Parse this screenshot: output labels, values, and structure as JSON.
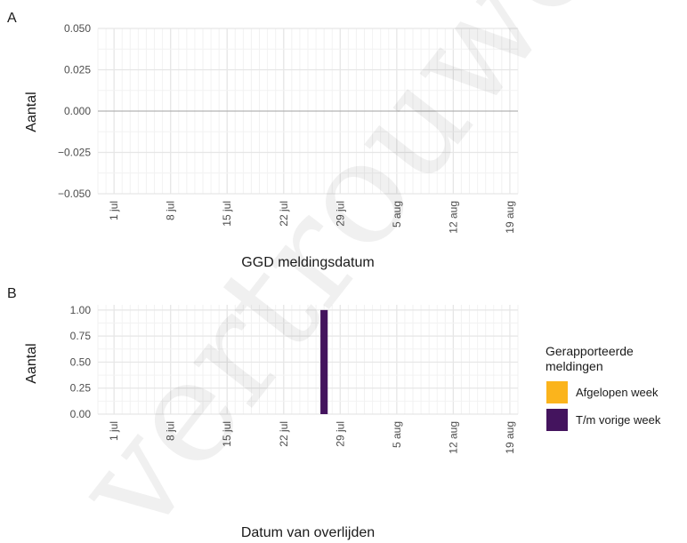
{
  "chart_data": [
    {
      "panel": "A",
      "type": "bar",
      "x_type": "date",
      "xlim": [
        "2020-06-29",
        "2020-08-20"
      ],
      "x_ticks": [
        "2020-07-01",
        "2020-07-08",
        "2020-07-15",
        "2020-07-22",
        "2020-07-29",
        "2020-08-05",
        "2020-08-12",
        "2020-08-19"
      ],
      "x_tick_labels": [
        "1 jul",
        "8 jul",
        "15 jul",
        "22 jul",
        "29 jul",
        "5 aug",
        "12 aug",
        "19 aug"
      ],
      "ylim": [
        -0.05,
        0.05
      ],
      "y_ticks": [
        -0.05,
        -0.025,
        0,
        0.025,
        0.05
      ],
      "y_tick_labels": [
        "−0.050",
        "−0.025",
        "0.000",
        "0.025",
        "0.050"
      ],
      "xlabel": "GGD meldingsdatum",
      "ylabel": "Aantal",
      "grid": true,
      "series": []
    },
    {
      "panel": "B",
      "type": "bar",
      "x_type": "date",
      "xlim": [
        "2020-06-29",
        "2020-08-20"
      ],
      "x_ticks": [
        "2020-07-01",
        "2020-07-08",
        "2020-07-15",
        "2020-07-22",
        "2020-07-29",
        "2020-08-05",
        "2020-08-12",
        "2020-08-19"
      ],
      "x_tick_labels": [
        "1 jul",
        "8 jul",
        "15 jul",
        "22 jul",
        "29 jul",
        "5 aug",
        "12 aug",
        "19 aug"
      ],
      "ylim": [
        0,
        1.05
      ],
      "y_ticks": [
        0,
        0.25,
        0.5,
        0.75,
        1
      ],
      "y_tick_labels": [
        "0.00",
        "0.25",
        "0.50",
        "0.75",
        "1.00"
      ],
      "xlabel": "Datum van overlijden",
      "ylabel": "Aantal",
      "grid": true,
      "series": [
        {
          "name": "Afgelopen week",
          "color": "#fbb41c",
          "points": []
        },
        {
          "name": "T/m vorige week",
          "color": "#44145e",
          "points": [
            {
              "x": "2020-07-27",
              "y": 1
            }
          ]
        }
      ]
    }
  ],
  "legend": {
    "title_lines": [
      "Gerapporteerde",
      "meldingen"
    ],
    "placement": "right",
    "items": [
      {
        "label": "Afgelopen week",
        "color": "#fbb41c"
      },
      {
        "label": "T/m vorige week",
        "color": "#44145e"
      }
    ]
  },
  "watermark": "vertrouwelijk",
  "colors": {
    "grid_major": "#e6e6e6",
    "grid_minor": "#f2f2f2",
    "zero_line": "#b3b3b3"
  }
}
